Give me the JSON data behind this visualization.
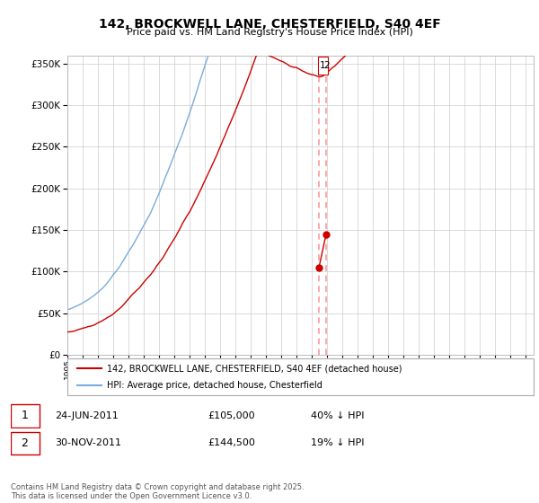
{
  "title": "142, BROCKWELL LANE, CHESTERFIELD, S40 4EF",
  "subtitle": "Price paid vs. HM Land Registry's House Price Index (HPI)",
  "legend_line1": "142, BROCKWELL LANE, CHESTERFIELD, S40 4EF (detached house)",
  "legend_line2": "HPI: Average price, detached house, Chesterfield",
  "sale1_date": "24-JUN-2011",
  "sale1_price": "£105,000",
  "sale1_hpi": "40% ↓ HPI",
  "sale2_date": "30-NOV-2011",
  "sale2_price": "£144,500",
  "sale2_hpi": "19% ↓ HPI",
  "footnote": "Contains HM Land Registry data © Crown copyright and database right 2025.\nThis data is licensed under the Open Government Licence v3.0.",
  "red_color": "#cc0000",
  "blue_color": "#7aacdc",
  "dashed_color": "#ff9999",
  "ylim_min": 0,
  "ylim_max": 360000,
  "yticks": [
    0,
    50000,
    100000,
    150000,
    200000,
    250000,
    300000,
    350000
  ],
  "background_color": "#ffffff",
  "grid_color": "#cccccc",
  "sale1_year": 2011.46,
  "sale2_year": 2011.92,
  "sale1_price_val": 105000,
  "sale2_price_val": 144500
}
